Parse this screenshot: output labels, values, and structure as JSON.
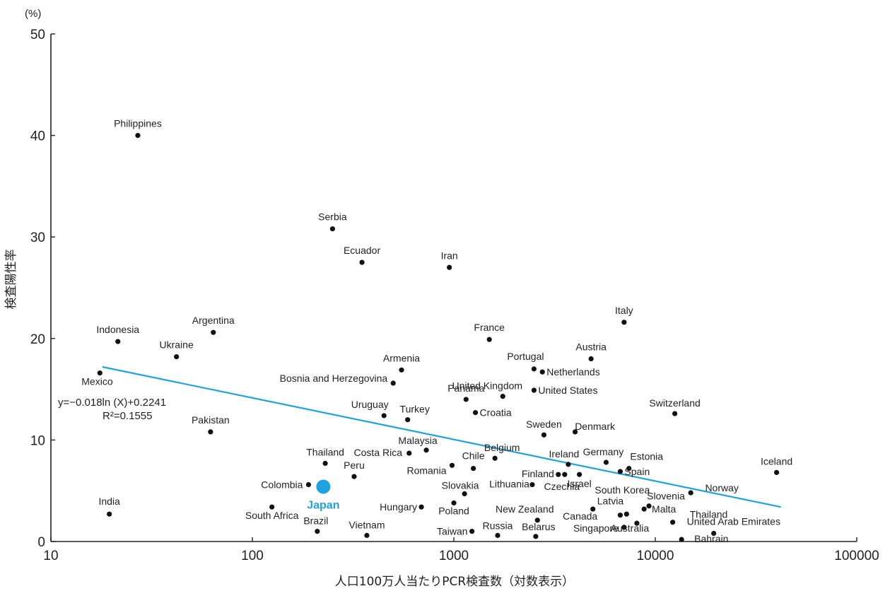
{
  "chart_data": {
    "type": "scatter",
    "x_scale": "log",
    "xlim": [
      10,
      100000
    ],
    "ylim": [
      0,
      50
    ],
    "x_ticks": [
      "10",
      "100",
      "1000",
      "10000",
      "100000"
    ],
    "y_ticks": [
      "0",
      "10",
      "20",
      "30",
      "40",
      "50"
    ],
    "xlabel": "人口100万人当たりPCR検査数（対数表示）",
    "ylabel": "検査陽性率",
    "y_unit": "(%)",
    "grid": false,
    "highlight_color": "#1ea3e0",
    "point_color": "#111111",
    "trendline": {
      "equation": "y=−0.018ln (X)+0.2241",
      "r2": "R²=0.1555",
      "x": [
        18,
        42000
      ],
      "y": [
        17.2,
        3.4
      ]
    },
    "points": [
      {
        "name": "Philippines",
        "x": 27,
        "y": 40.0
      },
      {
        "name": "Serbia",
        "x": 250,
        "y": 30.8
      },
      {
        "name": "Ecuador",
        "x": 350,
        "y": 27.5
      },
      {
        "name": "Iran",
        "x": 950,
        "y": 27.0
      },
      {
        "name": "Indonesia",
        "x": 21.5,
        "y": 19.7
      },
      {
        "name": "Argentina",
        "x": 64,
        "y": 20.6
      },
      {
        "name": "Ukraine",
        "x": 42,
        "y": 18.2
      },
      {
        "name": "Mexico",
        "x": 17.5,
        "y": 16.6
      },
      {
        "name": "Italy",
        "x": 7000,
        "y": 21.6
      },
      {
        "name": "France",
        "x": 1500,
        "y": 19.9
      },
      {
        "name": "Austria",
        "x": 4800,
        "y": 18.0
      },
      {
        "name": "Armenia",
        "x": 550,
        "y": 16.9
      },
      {
        "name": "Bosnia and Herzegovina",
        "x": 500,
        "y": 15.6
      },
      {
        "name": "Portugal",
        "x": 2500,
        "y": 17.0
      },
      {
        "name": "Netherlands",
        "x": 2750,
        "y": 16.7
      },
      {
        "name": "United Kingdom",
        "x": 1750,
        "y": 14.3
      },
      {
        "name": "United States",
        "x": 2500,
        "y": 14.9
      },
      {
        "name": "Panama",
        "x": 1150,
        "y": 14.0
      },
      {
        "name": "Croatia",
        "x": 1280,
        "y": 12.7
      },
      {
        "name": "Switzerland",
        "x": 12500,
        "y": 12.6
      },
      {
        "name": "Uruguay",
        "x": 450,
        "y": 12.4
      },
      {
        "name": "Turkey",
        "x": 590,
        "y": 12.0
      },
      {
        "name": "Pakistan",
        "x": 62,
        "y": 10.8
      },
      {
        "name": "Sweden",
        "x": 2800,
        "y": 10.5
      },
      {
        "name": "Denmark",
        "x": 4000,
        "y": 10.8
      },
      {
        "name": "Belgium",
        "x": 1600,
        "y": 8.2
      },
      {
        "name": "Malaysia",
        "x": 730,
        "y": 9.0
      },
      {
        "name": "Costa Rica",
        "x": 600,
        "y": 8.7
      },
      {
        "name": "Thailand",
        "x": 230,
        "y": 7.7
      },
      {
        "name": "Ireland",
        "x": 3700,
        "y": 7.6
      },
      {
        "name": "Germany",
        "x": 5700,
        "y": 7.8
      },
      {
        "name": "Estonia",
        "x": 7400,
        "y": 7.2
      },
      {
        "name": "Spain",
        "x": 6700,
        "y": 6.9
      },
      {
        "name": "Iceland",
        "x": 40000,
        "y": 6.8
      },
      {
        "name": "Chile",
        "x": 1250,
        "y": 7.2
      },
      {
        "name": "Romania",
        "x": 980,
        "y": 7.5
      },
      {
        "name": "Peru",
        "x": 320,
        "y": 6.4
      },
      {
        "name": "Finland",
        "x": 3300,
        "y": 6.6
      },
      {
        "name": "Israel",
        "x": 4200,
        "y": 6.6
      },
      {
        "name": "Norway",
        "x": 15000,
        "y": 4.8
      },
      {
        "name": "Colombia",
        "x": 190,
        "y": 5.6
      },
      {
        "name": "Japan",
        "x": 225,
        "y": 5.4,
        "highlight": true
      },
      {
        "name": "Slovakia",
        "x": 1130,
        "y": 4.7
      },
      {
        "name": "Lithuania",
        "x": 2450,
        "y": 5.6
      },
      {
        "name": "Czechia",
        "x": 3550,
        "y": 6.6
      },
      {
        "name": "South Korea",
        "x": 7200,
        "y": 2.7
      },
      {
        "name": "Latvia",
        "x": 6700,
        "y": 2.6
      },
      {
        "name": "Slovenia",
        "x": 9300,
        "y": 3.5
      },
      {
        "name": "Malta",
        "x": 8800,
        "y": 3.2
      },
      {
        "name": "Thailand",
        "x": 12200,
        "y": 1.9
      },
      {
        "name": "India",
        "x": 19.5,
        "y": 2.7
      },
      {
        "name": "South Africa",
        "x": 125,
        "y": 3.4
      },
      {
        "name": "Hungary",
        "x": 690,
        "y": 3.4
      },
      {
        "name": "Poland",
        "x": 1000,
        "y": 3.8
      },
      {
        "name": "New Zealand",
        "x": 2600,
        "y": 2.1
      },
      {
        "name": "Canada",
        "x": 4900,
        "y": 3.2
      },
      {
        "name": "Brazil",
        "x": 210,
        "y": 1.0
      },
      {
        "name": "Vietnam",
        "x": 370,
        "y": 0.6
      },
      {
        "name": "Taiwan",
        "x": 1230,
        "y": 1.0
      },
      {
        "name": "Russia",
        "x": 1650,
        "y": 0.6
      },
      {
        "name": "Belarus",
        "x": 2550,
        "y": 0.5
      },
      {
        "name": "Singapore",
        "x": 7000,
        "y": 1.4
      },
      {
        "name": "Australia",
        "x": 8100,
        "y": 1.8
      },
      {
        "name": "United Arab Emirates",
        "x": 19500,
        "y": 0.8
      },
      {
        "name": "Bahrain",
        "x": 13500,
        "y": 0.2
      }
    ]
  }
}
